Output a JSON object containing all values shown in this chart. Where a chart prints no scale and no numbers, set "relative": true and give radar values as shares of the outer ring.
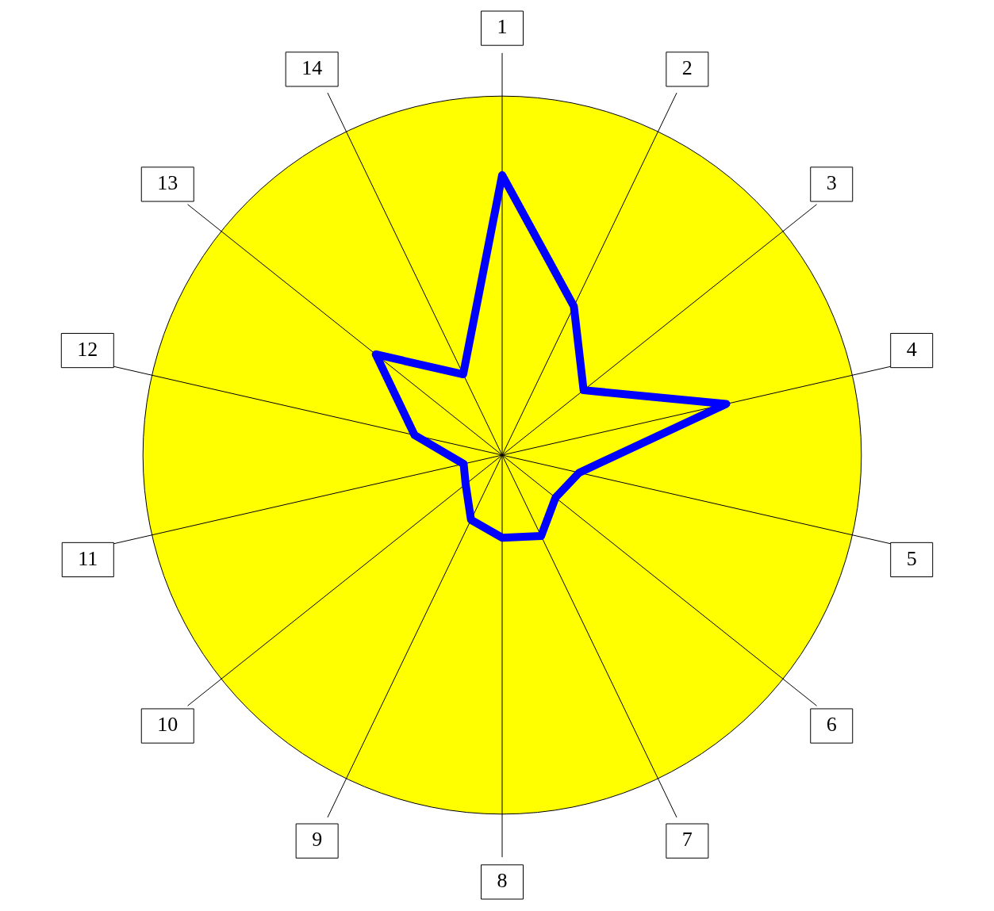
{
  "chart_data": {
    "type": "radar",
    "relative": true,
    "categories": [
      "1",
      "2",
      "3",
      "4",
      "5",
      "6",
      "7",
      "8",
      "9",
      "10",
      "11",
      "12",
      "13",
      "14"
    ],
    "series": [
      {
        "color": "#0000ff",
        "values": [
          0.78,
          0.46,
          0.29,
          0.64,
          0.22,
          0.19,
          0.25,
          0.23,
          0.2,
          0.13,
          0.11,
          0.25,
          0.45,
          0.25
        ]
      }
    ],
    "legend": false,
    "marker": "none"
  }
}
